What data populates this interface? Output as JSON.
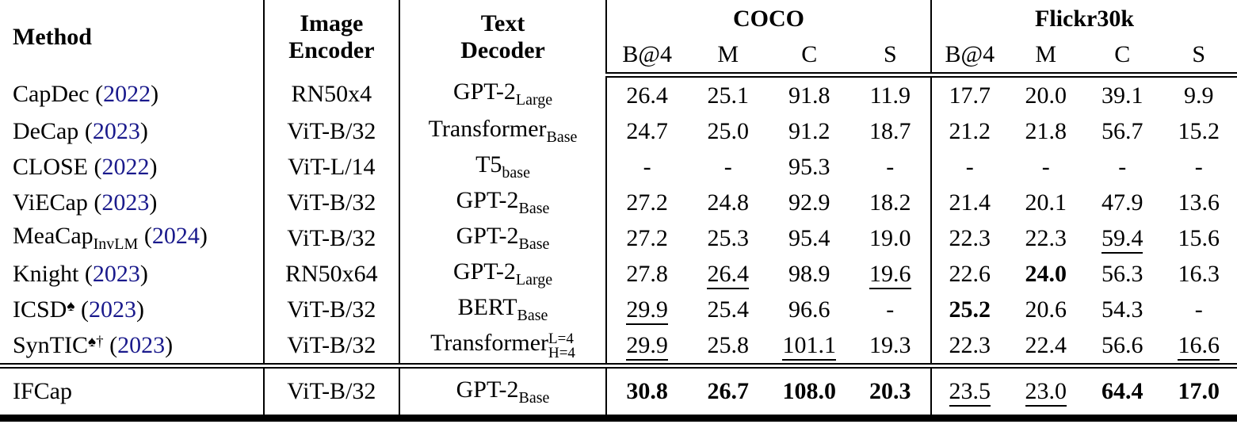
{
  "table": {
    "header": {
      "method": "Method",
      "image_encoder_line1": "Image",
      "image_encoder_line2": "Encoder",
      "text_decoder_line1": "Text",
      "text_decoder_line2": "Decoder",
      "groups": [
        {
          "label": "COCO"
        },
        {
          "label": "Flickr30k"
        }
      ],
      "metrics": [
        "B@4",
        "M",
        "C",
        "S"
      ]
    },
    "colors": {
      "year_link": "#1a1a8c",
      "text": "#000000"
    },
    "rows": [
      {
        "method": {
          "name": "CapDec",
          "sup": "",
          "sub": "",
          "year": "2022"
        },
        "encoder": "RN50x4",
        "decoder": {
          "base": "GPT-2",
          "sub": "Large",
          "sup": ""
        },
        "coco": [
          {
            "v": "26.4"
          },
          {
            "v": "25.1"
          },
          {
            "v": "91.8"
          },
          {
            "v": "11.9"
          }
        ],
        "flickr": [
          {
            "v": "17.7"
          },
          {
            "v": "20.0"
          },
          {
            "v": "39.1"
          },
          {
            "v": "9.9"
          }
        ]
      },
      {
        "method": {
          "name": "DeCap",
          "sup": "",
          "sub": "",
          "year": "2023"
        },
        "encoder": "ViT-B/32",
        "decoder": {
          "base": "Transformer",
          "sub": "Base",
          "sup": ""
        },
        "coco": [
          {
            "v": "24.7"
          },
          {
            "v": "25.0"
          },
          {
            "v": "91.2"
          },
          {
            "v": "18.7"
          }
        ],
        "flickr": [
          {
            "v": "21.2"
          },
          {
            "v": "21.8"
          },
          {
            "v": "56.7"
          },
          {
            "v": "15.2"
          }
        ]
      },
      {
        "method": {
          "name": "CLOSE",
          "sup": "",
          "sub": "",
          "year": "2022"
        },
        "encoder": "ViT-L/14",
        "decoder": {
          "base": "T5",
          "sub": "base",
          "sup": ""
        },
        "coco": [
          {
            "v": "-"
          },
          {
            "v": "-"
          },
          {
            "v": "95.3"
          },
          {
            "v": "-"
          }
        ],
        "flickr": [
          {
            "v": "-"
          },
          {
            "v": "-"
          },
          {
            "v": "-"
          },
          {
            "v": "-"
          }
        ]
      },
      {
        "method": {
          "name": "ViECap",
          "sup": "",
          "sub": "",
          "year": "2023"
        },
        "encoder": "ViT-B/32",
        "decoder": {
          "base": "GPT-2",
          "sub": "Base",
          "sup": ""
        },
        "coco": [
          {
            "v": "27.2"
          },
          {
            "v": "24.8"
          },
          {
            "v": "92.9"
          },
          {
            "v": "18.2"
          }
        ],
        "flickr": [
          {
            "v": "21.4"
          },
          {
            "v": "20.1"
          },
          {
            "v": "47.9"
          },
          {
            "v": "13.6"
          }
        ]
      },
      {
        "method": {
          "name": "MeaCap",
          "sup": "",
          "sub": "InvLM",
          "year": "2024"
        },
        "encoder": "ViT-B/32",
        "decoder": {
          "base": "GPT-2",
          "sub": "Base",
          "sup": ""
        },
        "coco": [
          {
            "v": "27.2"
          },
          {
            "v": "25.3"
          },
          {
            "v": "95.4"
          },
          {
            "v": "19.0"
          }
        ],
        "flickr": [
          {
            "v": "22.3"
          },
          {
            "v": "22.3"
          },
          {
            "v": "59.4",
            "u": true
          },
          {
            "v": "15.6"
          }
        ]
      },
      {
        "method": {
          "name": "Knight",
          "sup": "",
          "sub": "",
          "year": "2023"
        },
        "encoder": "RN50x64",
        "decoder": {
          "base": "GPT-2",
          "sub": "Large",
          "sup": ""
        },
        "coco": [
          {
            "v": "27.8"
          },
          {
            "v": "26.4",
            "u": true
          },
          {
            "v": "98.9"
          },
          {
            "v": "19.6",
            "u": true
          }
        ],
        "flickr": [
          {
            "v": "22.6"
          },
          {
            "v": "24.0",
            "b": true
          },
          {
            "v": "56.3"
          },
          {
            "v": "16.3"
          }
        ]
      },
      {
        "method": {
          "name": "ICSD",
          "sup": "♠",
          "sub": "",
          "year": "2023"
        },
        "encoder": "ViT-B/32",
        "decoder": {
          "base": "BERT",
          "sub": "Base",
          "sup": ""
        },
        "coco": [
          {
            "v": "29.9",
            "u": true
          },
          {
            "v": "25.4"
          },
          {
            "v": "96.6"
          },
          {
            "v": "-"
          }
        ],
        "flickr": [
          {
            "v": "25.2",
            "b": true
          },
          {
            "v": "20.6"
          },
          {
            "v": "54.3"
          },
          {
            "v": "-"
          }
        ]
      },
      {
        "method": {
          "name": "SynTIC",
          "sup": "♠†",
          "sub": "",
          "year": "2023"
        },
        "encoder": "ViT-B/32",
        "decoder": {
          "base": "Transformer",
          "sub": "H=4",
          "sup": "L=4"
        },
        "coco": [
          {
            "v": "29.9",
            "u": true
          },
          {
            "v": "25.8"
          },
          {
            "v": "101.1",
            "u": true
          },
          {
            "v": "19.3"
          }
        ],
        "flickr": [
          {
            "v": "22.3"
          },
          {
            "v": "22.4"
          },
          {
            "v": "56.6"
          },
          {
            "v": "16.6",
            "u": true
          }
        ]
      }
    ],
    "final_row": {
      "method": {
        "name": "IFCap",
        "sup": "",
        "sub": "",
        "year": ""
      },
      "encoder": "ViT-B/32",
      "decoder": {
        "base": "GPT-2",
        "sub": "Base",
        "sup": ""
      },
      "coco": [
        {
          "v": "30.8",
          "b": true
        },
        {
          "v": "26.7",
          "b": true
        },
        {
          "v": "108.0",
          "b": true
        },
        {
          "v": "20.3",
          "b": true
        }
      ],
      "flickr": [
        {
          "v": "23.5",
          "u": true
        },
        {
          "v": "23.0",
          "u": true
        },
        {
          "v": "64.4",
          "b": true
        },
        {
          "v": "17.0",
          "b": true
        }
      ]
    }
  }
}
